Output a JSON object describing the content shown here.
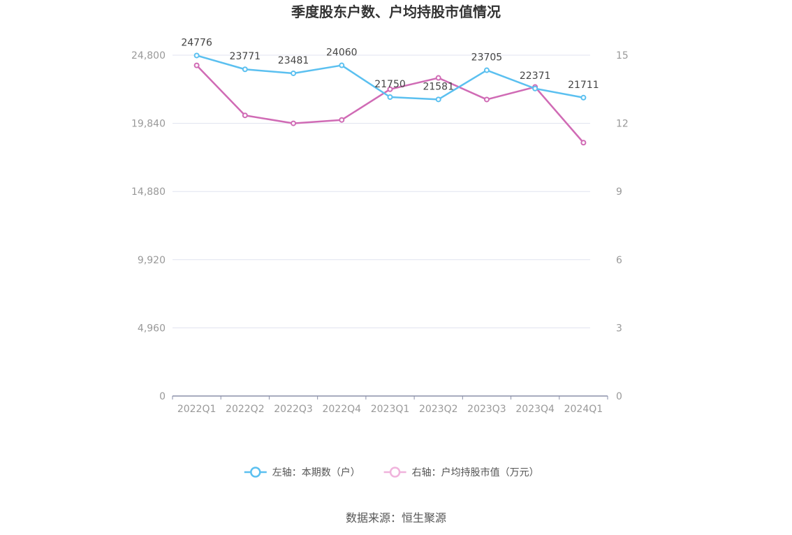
{
  "chart_data": {
    "type": "line",
    "title": "季度股东户数、户均持股市值情况",
    "categories": [
      "2022Q1",
      "2022Q2",
      "2022Q3",
      "2022Q4",
      "2023Q1",
      "2023Q2",
      "2023Q3",
      "2023Q4",
      "2024Q1"
    ],
    "series": [
      {
        "name": "左轴：本期数（户）",
        "axis": "left",
        "color": "#5bc0f0",
        "values": [
          24776,
          23771,
          23481,
          24060,
          21750,
          21581,
          23705,
          22371,
          21711
        ],
        "show_labels": true
      },
      {
        "name": "右轴：户均持股市值（万元）",
        "axis": "right",
        "color": "#d06bb5",
        "legend_color": "#f0b3dc",
        "values": [
          14.55,
          12.35,
          12.0,
          12.15,
          13.5,
          14.0,
          13.05,
          13.6,
          11.15
        ],
        "show_labels": false
      }
    ],
    "left_axis": {
      "min": 0,
      "max": 24800,
      "ticks": [
        0,
        4960,
        9920,
        14880,
        19840,
        24800
      ],
      "tick_labels": [
        "0",
        "4,960",
        "9,920",
        "14,880",
        "19,840",
        "24,800"
      ]
    },
    "right_axis": {
      "min": 0,
      "max": 15,
      "ticks": [
        0,
        3,
        6,
        9,
        12,
        15
      ],
      "tick_labels": [
        "0",
        "3",
        "6",
        "9",
        "12",
        "15"
      ]
    },
    "grid": true,
    "legend_position": "bottom-center"
  },
  "source": "数据来源：恒生聚源"
}
